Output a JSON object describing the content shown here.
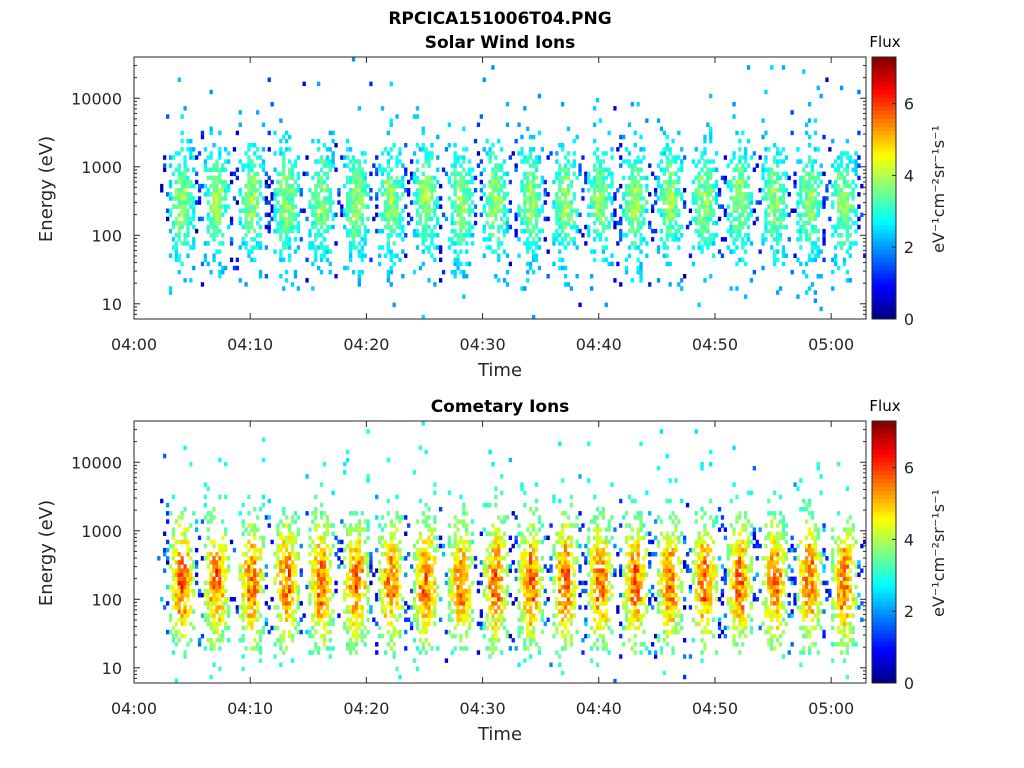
{
  "figure_title": "RPCICA151006T04.PNG",
  "chart_data": [
    {
      "type": "heatmap",
      "title": "Solar Wind Ions",
      "xlabel": "Time",
      "ylabel": "Energy (eV)",
      "xlim": [
        "04:00",
        "05:03"
      ],
      "x_ticks": [
        "04:00",
        "04:10",
        "04:20",
        "04:30",
        "04:40",
        "04:50",
        "05:00"
      ],
      "yscale": "log",
      "ylim": [
        6,
        40000
      ],
      "y_ticks": [
        "10",
        "100",
        "1000",
        "10000"
      ],
      "colorbar": {
        "title": "Flux",
        "label": "eV⁻¹cm⁻²sr⁻¹s⁻¹",
        "ticks": [
          "0",
          "2",
          "4",
          "6"
        ],
        "range": [
          0,
          7.3
        ],
        "colormap": "jet"
      },
      "data_start": "04:02",
      "data_end": "05:03",
      "bursts_center_time": [
        "04:04",
        "04:07",
        "04:10",
        "04:13",
        "04:16",
        "04:19",
        "04:22",
        "04:25",
        "04:28",
        "04:31",
        "04:34",
        "04:37",
        "04:40",
        "04:43",
        "04:46",
        "04:49",
        "04:52",
        "04:55",
        "04:58",
        "05:01"
      ],
      "core_energy_range_eV": [
        100,
        1000
      ],
      "peak_flux": 4.3,
      "background_flux": 2.2,
      "grid": false
    },
    {
      "type": "heatmap",
      "title": "Cometary Ions",
      "xlabel": "Time",
      "ylabel": "Energy (eV)",
      "xlim": [
        "04:00",
        "05:03"
      ],
      "x_ticks": [
        "04:00",
        "04:10",
        "04:20",
        "04:30",
        "04:40",
        "04:50",
        "05:00"
      ],
      "yscale": "log",
      "ylim": [
        6,
        40000
      ],
      "y_ticks": [
        "10",
        "100",
        "1000",
        "10000"
      ],
      "colorbar": {
        "title": "Flux",
        "label": "eV⁻¹cm⁻²sr⁻¹s⁻¹",
        "ticks": [
          "0",
          "2",
          "4",
          "6"
        ],
        "range": [
          0,
          7.3
        ],
        "colormap": "jet"
      },
      "data_start": "04:02",
      "data_end": "05:03",
      "bursts_center_time": [
        "04:04",
        "04:07",
        "04:10",
        "04:13",
        "04:16",
        "04:19",
        "04:22",
        "04:25",
        "04:28",
        "04:31",
        "04:34",
        "04:37",
        "04:40",
        "04:43",
        "04:46",
        "04:49",
        "04:52",
        "04:55",
        "04:58",
        "05:01"
      ],
      "core_energy_range_eV": [
        40,
        800
      ],
      "peak_flux": 6.4,
      "background_flux": 2.8,
      "grid": false
    }
  ]
}
